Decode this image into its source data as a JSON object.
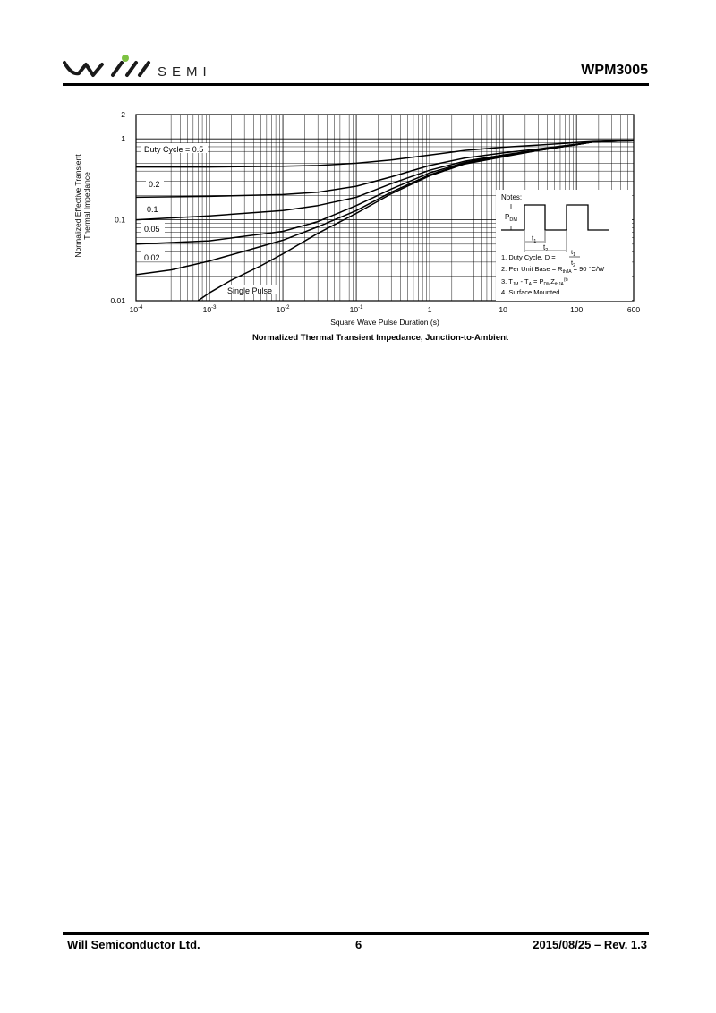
{
  "header": {
    "brand": "SEMI",
    "logo_icon": "will-semi-logo-icon",
    "doc_title": "WPM3005"
  },
  "footer": {
    "company": "Will Semiconductor Ltd.",
    "page_number": "6",
    "date_rev": "2015/08/25 – Rev. 1.3"
  },
  "chart_data": {
    "type": "line",
    "title": "Normalized Thermal Transient Impedance, Junction-to-Ambient",
    "xlabel": "Square Wave Pulse Duration (s)",
    "ylabel_line1": "Normalized Effective Transient",
    "ylabel_line2": "Thermal Impedance",
    "x_scale": "log",
    "y_scale": "log",
    "xlim": [
      0.0001,
      600
    ],
    "ylim": [
      0.01,
      2
    ],
    "grid": true,
    "x_ticks": [
      {
        "value": 0.0001,
        "base": "10",
        "exp": "-4"
      },
      {
        "value": 0.001,
        "base": "10",
        "exp": "-3"
      },
      {
        "value": 0.01,
        "base": "10",
        "exp": "-2"
      },
      {
        "value": 0.1,
        "base": "10",
        "exp": "-1"
      },
      {
        "value": 1,
        "base": "1",
        "exp": ""
      },
      {
        "value": 10,
        "base": "10",
        "exp": ""
      },
      {
        "value": 100,
        "base": "100",
        "exp": ""
      },
      {
        "value": 600,
        "base": "600",
        "exp": ""
      }
    ],
    "y_ticks": [
      {
        "value": 0.01,
        "label": "0.01"
      },
      {
        "value": 0.1,
        "label": "0.1"
      },
      {
        "value": 1,
        "label": "1"
      },
      {
        "value": 2,
        "label": "2"
      }
    ],
    "series": [
      {
        "name": "Duty Cycle = 0.5",
        "x": [
          0.0001,
          0.001,
          0.01,
          0.03,
          0.1,
          0.3,
          1,
          3,
          10,
          30,
          100,
          170,
          600
        ],
        "y": [
          0.45,
          0.45,
          0.46,
          0.47,
          0.5,
          0.55,
          0.63,
          0.72,
          0.79,
          0.84,
          0.9,
          0.93,
          0.95
        ]
      },
      {
        "name": "0.2",
        "x": [
          0.0001,
          0.001,
          0.01,
          0.03,
          0.1,
          0.3,
          1,
          3,
          10,
          30,
          100,
          170,
          600
        ],
        "y": [
          0.19,
          0.195,
          0.205,
          0.22,
          0.26,
          0.34,
          0.47,
          0.58,
          0.67,
          0.75,
          0.86,
          0.92,
          0.95
        ]
      },
      {
        "name": "0.1",
        "x": [
          0.0001,
          0.001,
          0.01,
          0.03,
          0.1,
          0.3,
          1,
          3,
          10,
          30,
          100,
          170,
          600
        ],
        "y": [
          0.1,
          0.112,
          0.13,
          0.15,
          0.19,
          0.28,
          0.41,
          0.53,
          0.63,
          0.73,
          0.85,
          0.92,
          0.95
        ]
      },
      {
        "name": "0.05",
        "x": [
          0.0001,
          0.001,
          0.01,
          0.03,
          0.1,
          0.3,
          1,
          3,
          10,
          30,
          100,
          170,
          600
        ],
        "y": [
          0.05,
          0.055,
          0.072,
          0.095,
          0.15,
          0.24,
          0.38,
          0.51,
          0.62,
          0.72,
          0.85,
          0.92,
          0.95
        ]
      },
      {
        "name": "0.02",
        "x": [
          0.0001,
          0.0003,
          0.001,
          0.003,
          0.01,
          0.03,
          0.1,
          0.3,
          1,
          3,
          10,
          30,
          100,
          170,
          600
        ],
        "y": [
          0.021,
          0.024,
          0.031,
          0.041,
          0.056,
          0.082,
          0.13,
          0.22,
          0.36,
          0.5,
          0.61,
          0.72,
          0.85,
          0.92,
          0.95
        ]
      },
      {
        "name": "Single Pulse",
        "x": [
          0.0007,
          0.001,
          0.002,
          0.005,
          0.01,
          0.03,
          0.1,
          0.3,
          1,
          3,
          10,
          30,
          100,
          170,
          600
        ],
        "y": [
          0.01,
          0.0125,
          0.018,
          0.027,
          0.038,
          0.068,
          0.12,
          0.21,
          0.35,
          0.49,
          0.6,
          0.72,
          0.85,
          0.92,
          0.95
        ]
      }
    ],
    "notes": {
      "heading": "Notes:",
      "pdm": "P",
      "pdm_sub": "DM",
      "t1": "t",
      "t1_sub": "1",
      "t2": "t",
      "t2_sub": "2",
      "note1": "1. Duty Cycle, D = ",
      "note1_num": "t",
      "note1_num_sub": "1",
      "note1_den": "t",
      "note1_den_sub": "2",
      "note2": "2. Per Unit Base = R",
      "note2_sub": "thJA",
      "note2_end": " = 90 °C/W",
      "note3_a": "3. T",
      "note3_a_sub": "JM",
      "note3_b": " - T",
      "note3_b_sub": "A",
      "note3_c": " = P",
      "note3_c_sub": "DM",
      "note3_d": "Z",
      "note3_d_sub": "thJA",
      "note3_d_sup": "(t)",
      "note4": "4. Surface Mounted"
    }
  }
}
